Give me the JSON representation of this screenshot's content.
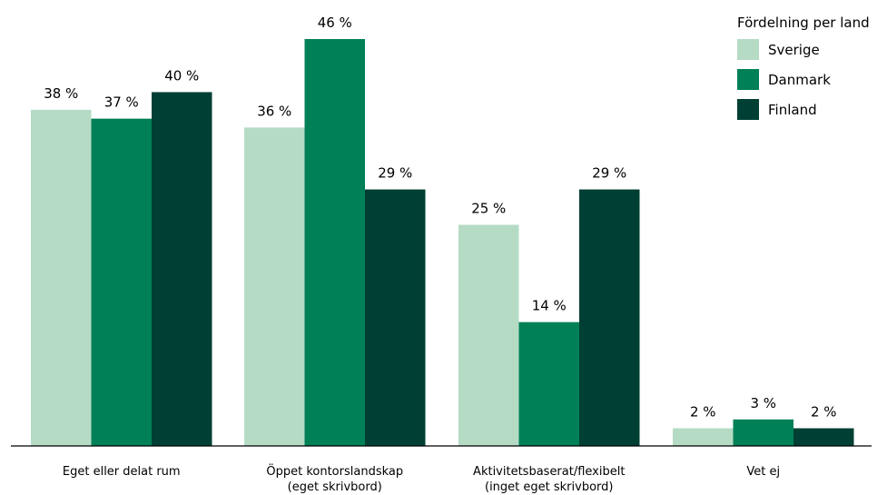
{
  "chart_data": {
    "type": "bar",
    "title": "",
    "xlabel": "",
    "ylabel": "",
    "ylim": [
      0,
      46
    ],
    "grid": false,
    "legend_position": "top-right",
    "legend_title": "Fördelning per land",
    "categories": [
      [
        "Eget eller delat rum"
      ],
      [
        "Öppet kontorslandskap",
        "(eget skrivbord)"
      ],
      [
        "Aktivitetsbaserat/flexibelt",
        "(inget eget skrivbord)"
      ],
      [
        "Vet ej"
      ]
    ],
    "series": [
      {
        "name": "Sverige",
        "color": "#b5dbc5",
        "values": [
          38,
          36,
          25,
          2
        ],
        "labels": [
          "38 %",
          "36 %",
          "25 %",
          "2 %"
        ]
      },
      {
        "name": "Danmark",
        "color": "#008057",
        "values": [
          37,
          46,
          14,
          3
        ],
        "labels": [
          "37 %",
          "46 %",
          "14 %",
          "3 %"
        ]
      },
      {
        "name": "Finland",
        "color": "#003f33",
        "values": [
          40,
          29,
          29,
          2
        ],
        "labels": [
          "40 %",
          "29 %",
          "29 %",
          "2 %"
        ]
      }
    ]
  }
}
